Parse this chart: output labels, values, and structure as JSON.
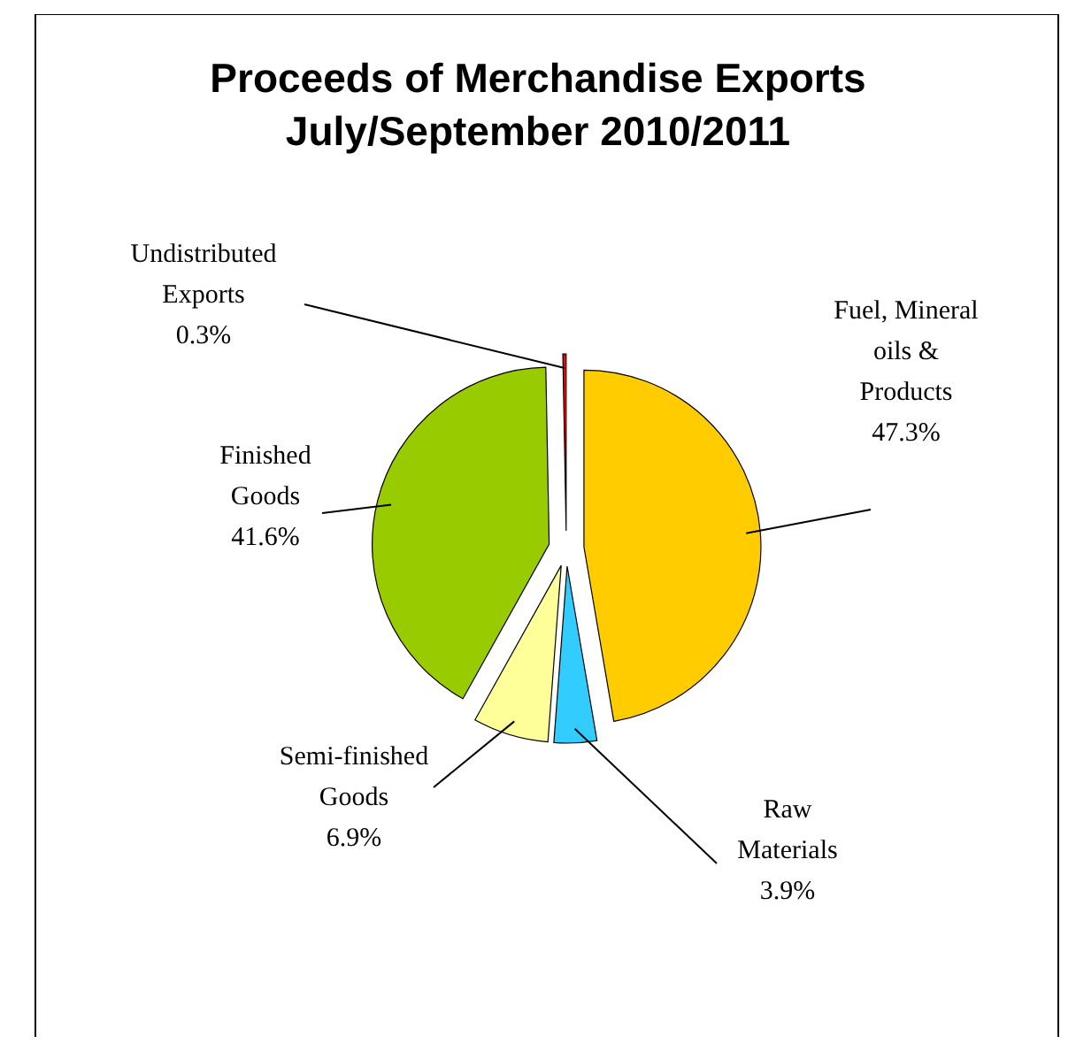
{
  "chart_data": {
    "type": "pie",
    "title": "Proceeds of Merchandise Exports\nJuly/September 2010/2011",
    "categories": [
      "Fuel, Mineral oils & Products",
      "Raw Materials",
      "Semi-finished Goods",
      "Finished Goods",
      "Undistributed Exports"
    ],
    "values": [
      47.3,
      3.9,
      6.9,
      41.6,
      0.3
    ],
    "value_labels": [
      "47.3%",
      "3.9%",
      "6.9%",
      "41.6%",
      "0.3%"
    ],
    "colors": [
      "#ffcc00",
      "#33ccff",
      "#ffff99",
      "#99cc00",
      "#ff0000"
    ]
  }
}
